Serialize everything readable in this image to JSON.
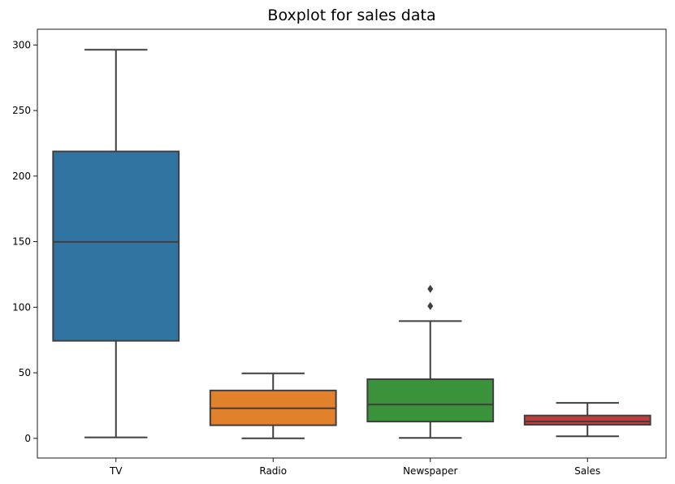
{
  "chart_data": {
    "type": "box",
    "title": "Boxplot for sales data",
    "xlabel": "",
    "ylabel": "",
    "categories": [
      "TV",
      "Radio",
      "Newspaper",
      "Sales"
    ],
    "boxes": [
      {
        "category": "TV",
        "color": "#3274a1",
        "whisker_low": 0.7,
        "q1": 74.4,
        "median": 149.8,
        "q3": 218.8,
        "whisker_high": 296.4,
        "outliers": []
      },
      {
        "category": "Radio",
        "color": "#e1812c",
        "whisker_low": 0.0,
        "q1": 10.0,
        "median": 22.9,
        "q3": 36.5,
        "whisker_high": 49.6,
        "outliers": []
      },
      {
        "category": "Newspaper",
        "color": "#3a923a",
        "whisker_low": 0.3,
        "q1": 12.8,
        "median": 25.8,
        "q3": 45.1,
        "whisker_high": 89.4,
        "outliers": [
          100.9,
          114.0
        ]
      },
      {
        "category": "Sales",
        "color": "#c03d3e",
        "whisker_low": 1.6,
        "q1": 10.4,
        "median": 12.9,
        "q3": 17.4,
        "whisker_high": 27.0,
        "outliers": []
      }
    ],
    "ylim": [
      -15,
      312
    ],
    "yticks": [
      0,
      50,
      100,
      150,
      200,
      250,
      300
    ],
    "grid": false,
    "legend": "none"
  }
}
